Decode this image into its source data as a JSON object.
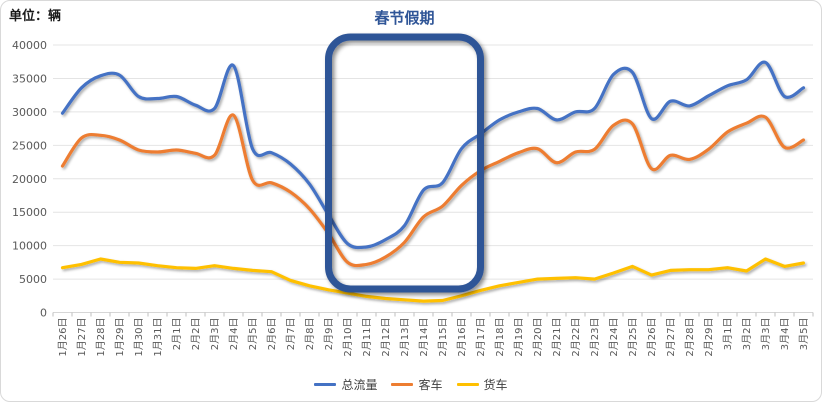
{
  "unit_label": "单位：辆",
  "chart_data": {
    "type": "line",
    "title": "春节假期",
    "xlabel": "",
    "ylabel": "单位：辆",
    "ylim": [
      0,
      40000
    ],
    "y_step": 5000,
    "grid": true,
    "legend_position": "bottom",
    "categories": [
      "1月26日",
      "1月27日",
      "1月28日",
      "1月29日",
      "1月30日",
      "1月31日",
      "2月1日",
      "2月2日",
      "2月3日",
      "2月4日",
      "2月5日",
      "2月6日",
      "2月7日",
      "2月8日",
      "2月9日",
      "2月10日",
      "2月11日",
      "2月12日",
      "2月13日",
      "2月14日",
      "2月15日",
      "2月16日",
      "2月17日",
      "2月18日",
      "2月19日",
      "2月20日",
      "2月21日",
      "2月22日",
      "2月23日",
      "2月24日",
      "2月25日",
      "2月26日",
      "2月27日",
      "2月28日",
      "2月29日",
      "3月1日",
      "3月2日",
      "3月3日",
      "3月4日",
      "3月5日"
    ],
    "series": [
      {
        "name": "总流量",
        "color": "#4472C4",
        "smooth": true,
        "values": [
          29800,
          33600,
          35400,
          35500,
          32300,
          32000,
          32300,
          31000,
          30500,
          36900,
          24500,
          23900,
          22200,
          19200,
          14600,
          10300,
          9800,
          10900,
          13000,
          18300,
          19400,
          24500,
          26700,
          28800,
          30000,
          30500,
          28800,
          30000,
          30500,
          35600,
          35900,
          29000,
          31600,
          30900,
          32400,
          33900,
          34800,
          37400,
          32300,
          33600
        ]
      },
      {
        "name": "客车",
        "color": "#ED7D31",
        "smooth": true,
        "values": [
          21900,
          26100,
          26500,
          25800,
          24300,
          24000,
          24300,
          23800,
          23500,
          29500,
          19800,
          19400,
          18000,
          15500,
          11800,
          7500,
          7200,
          8300,
          10500,
          14300,
          15900,
          19000,
          21200,
          22600,
          23900,
          24500,
          22400,
          24000,
          24400,
          28000,
          28200,
          21500,
          23500,
          22900,
          24400,
          27000,
          28300,
          29200,
          24700,
          25800
        ]
      },
      {
        "name": "货车",
        "color": "#FFC000",
        "smooth": false,
        "values": [
          6700,
          7200,
          8000,
          7500,
          7400,
          7000,
          6700,
          6600,
          7000,
          6600,
          6300,
          6100,
          4800,
          4000,
          3400,
          2900,
          2400,
          2100,
          1900,
          1700,
          1800,
          2500,
          3300,
          4000,
          4500,
          5000,
          5100,
          5200,
          5000,
          5900,
          6900,
          5600,
          6300,
          6400,
          6400,
          6700,
          6200,
          8000,
          6900,
          7400
        ]
      }
    ],
    "annotation": {
      "label": "春节假期",
      "from_category": "2月9日",
      "to_category": "2月17日",
      "color": "#2F5597"
    }
  },
  "style_colors": {
    "gridline": "#e4e4e4",
    "axis_line": "#d6d6d6",
    "tick": "#bfbfbf",
    "label_text": "#595959"
  }
}
